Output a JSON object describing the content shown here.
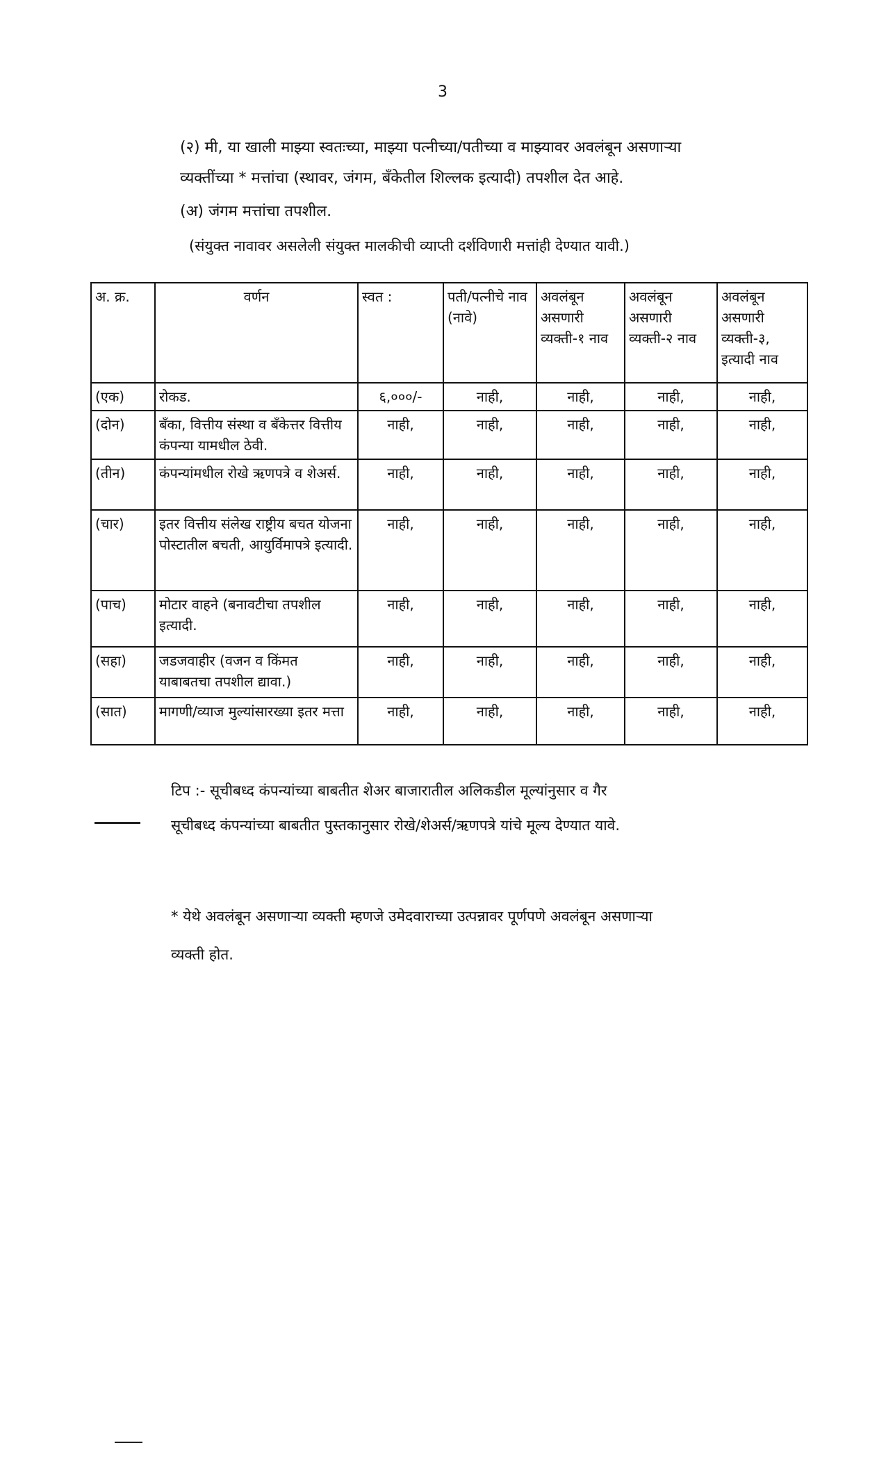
{
  "page_number": "3",
  "intro": {
    "line1": "(२) मी, या खाली माझ्या स्वतःच्या, माझ्या पत्नीच्या/पतीच्या व माझ्यावर अवलंबून असणाऱ्या",
    "line2": "व्यक्तींच्या * मत्तांचा (स्थावर, जंगम, बँकेतील शिल्लक इत्यादी) तपशील देत आहे.",
    "line3": "(अ) जंगम मत्तांचा तपशील.",
    "line4": "(संयुक्त नावावर असलेली संयुक्त मालकीची व्याप्ती दर्शविणारी मत्तांही देण्यात यावी.)"
  },
  "table": {
    "headers": [
      "अ. क्र.",
      "वर्णन",
      "स्वत :",
      "पती/पत्नीचे नाव (नावे)",
      "अवलंबून असणारी व्यक्ती-१ नाव",
      "अवलंबून असणारी व्यक्ती-२ नाव",
      "अवलंबून असणारी व्यक्ती-३, इत्यादी नाव"
    ],
    "rows": [
      {
        "no": "(एक)",
        "desc": "रोकड.",
        "values": [
          "६,०००/-",
          "नाही,",
          "नाही,",
          "नाही,",
          "नाही,"
        ]
      },
      {
        "no": "(दोन)",
        "desc": "बँका, वित्तीय संस्था व बँकेत्तर वित्तीय कंपन्या यामधील ठेवी.",
        "values": [
          "नाही,",
          "नाही,",
          "नाही,",
          "नाही,",
          "नाही,"
        ]
      },
      {
        "no": "(तीन)",
        "desc": "कंपन्यांमधील रोखे ऋणपत्रे व शेअर्स.",
        "values": [
          "नाही,",
          "नाही,",
          "नाही,",
          "नाही,",
          "नाही,"
        ]
      },
      {
        "no": "(चार)",
        "desc": "इतर वित्तीय संलेख राष्ट्रीय बचत योजना पोस्टातील बचती, आयुर्विमापत्रे इत्यादी.",
        "values": [
          "नाही,",
          "नाही,",
          "नाही,",
          "नाही,",
          "नाही,"
        ]
      },
      {
        "no": "(पाच)",
        "desc": "मोटार वाहने (बनावटीचा तपशील इत्यादी.",
        "values": [
          "नाही,",
          "नाही,",
          "नाही,",
          "नाही,",
          "नाही,"
        ]
      },
      {
        "no": "(सहा)",
        "desc": "जडजवाहीर (वजन व किंमत याबाबतचा तपशील द्यावा.)",
        "values": [
          "नाही,",
          "नाही,",
          "नाही,",
          "नाही,",
          "नाही,"
        ]
      },
      {
        "no": "(सात)",
        "desc": "मागणी/व्याज मुल्यांसारख्या इतर मत्ता",
        "values": [
          "नाही,",
          "नाही,",
          "नाही,",
          "नाही,",
          "नाही,"
        ]
      }
    ]
  },
  "note": {
    "line1": "टिप :- सूचीबध्द कंपन्यांच्या बाबतीत शेअर बाजारातील अलिकडील मूल्यांनुसार व गैर",
    "line2": "सूचीबध्द कंपन्यांच्या बाबतीत पुस्तकानुसार रोखे/शेअर्स/ऋणपत्रे यांचे मूल्य देण्यात यावे."
  },
  "footnote": {
    "line1": "* येथे अवलंबून असणाऱ्या व्यक्ती म्हणजे उमेदवाराच्या उत्पन्नावर पूर्णपणे अवलंबून असणाऱ्या",
    "line2": "व्यक्ती होत."
  }
}
